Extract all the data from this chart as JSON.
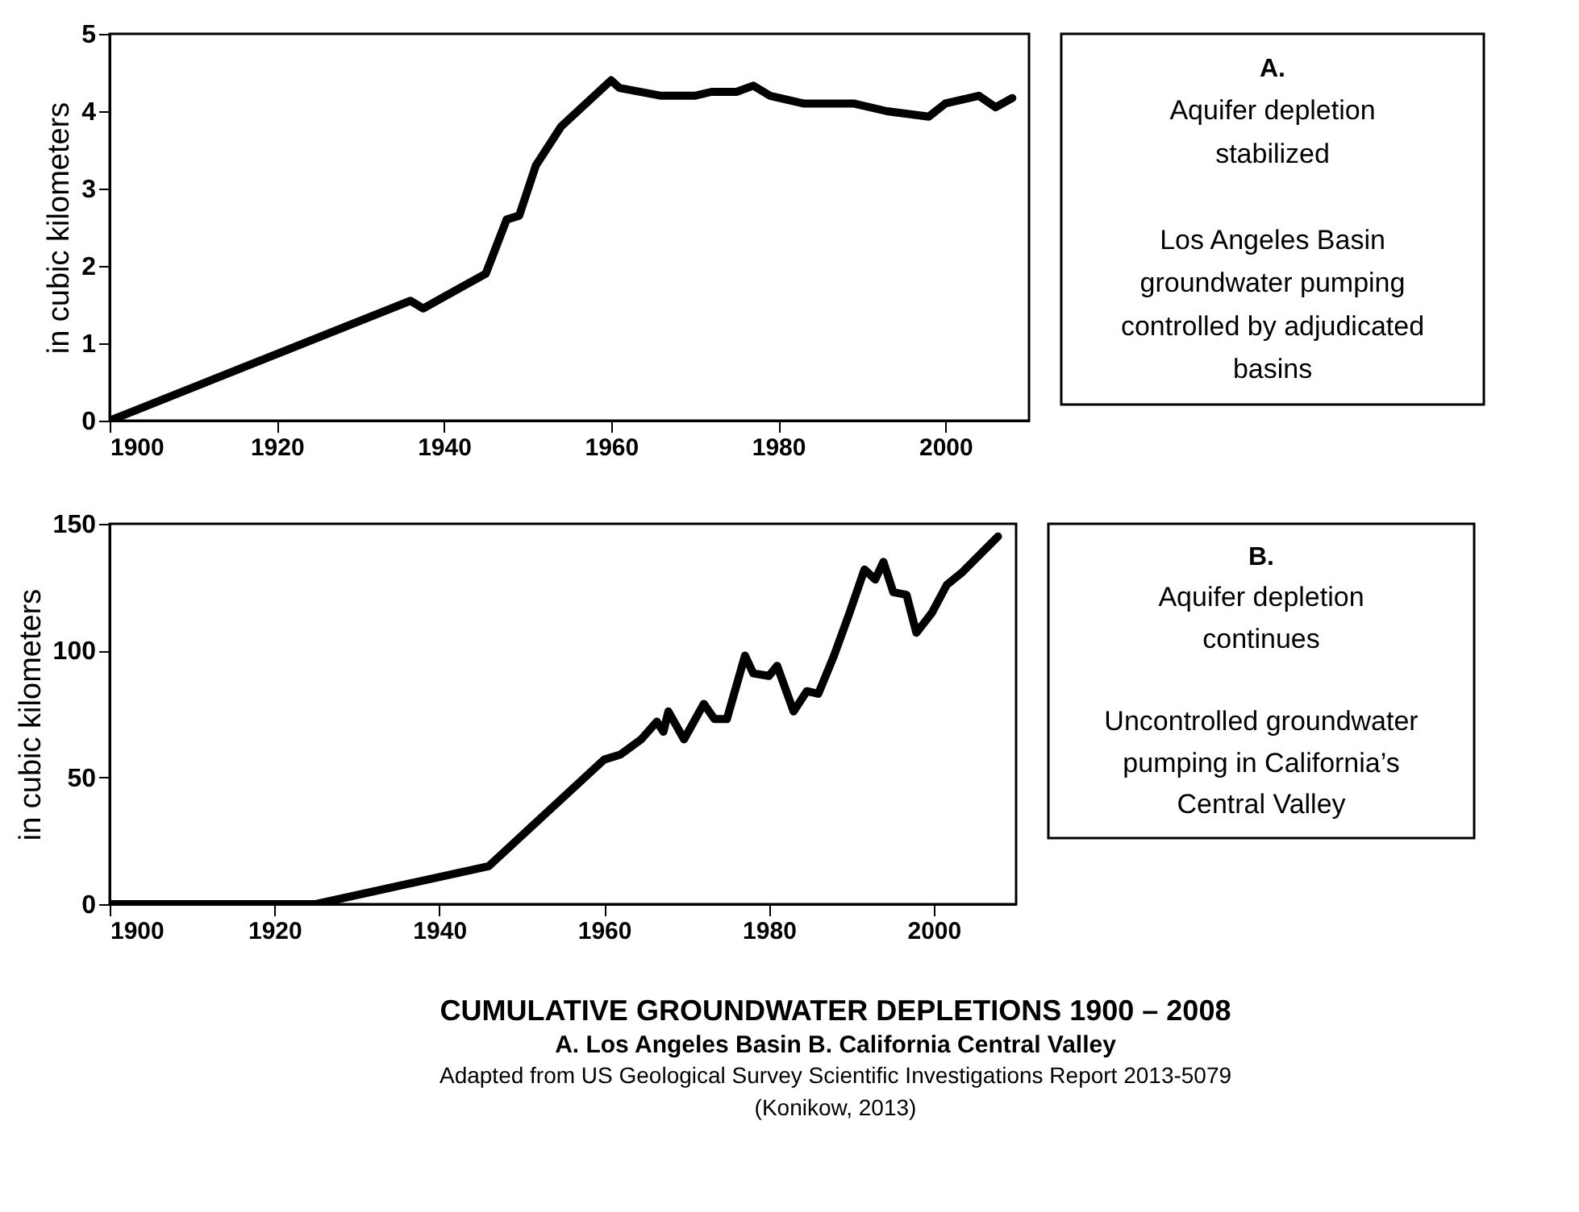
{
  "chart_data": [
    {
      "type": "line",
      "ylabel": "in cubic kilometers",
      "xlim": [
        1900,
        2010
      ],
      "xticks": [
        1900,
        1920,
        1940,
        1960,
        1980,
        2000
      ],
      "ylim": [
        0,
        5
      ],
      "yticks": [
        0,
        1,
        2,
        3,
        4,
        5
      ],
      "series": [
        {
          "color": "#000000",
          "x": [
            1900,
            1936,
            1937.5,
            1940,
            1945,
            1947.5,
            1949,
            1951,
            1954,
            1957,
            1960,
            1961,
            1966,
            1970,
            1972,
            1975,
            1977,
            1979,
            1983,
            1989,
            1993,
            1998,
            2000,
            2004,
            2006,
            2008
          ],
          "values": [
            0,
            1.55,
            1.45,
            1.6,
            1.9,
            2.6,
            2.65,
            3.3,
            3.8,
            4.1,
            4.4,
            4.3,
            4.2,
            4.2,
            4.25,
            4.25,
            4.33,
            4.2,
            4.1,
            4.1,
            4.0,
            3.93,
            4.1,
            4.2,
            4.05,
            4.17
          ]
        }
      ]
    },
    {
      "type": "other",
      "title": "A.",
      "annotations": [
        "Aquifer depletion stabilized",
        "Los Angeles Basin groundwater pumping controlled by adjudicated basins"
      ]
    },
    {
      "type": "line",
      "ylabel": "in cubic kilometers",
      "xlim": [
        1900,
        2010
      ],
      "xticks": [
        1900,
        1920,
        1940,
        1960,
        1980,
        2000
      ],
      "ylim": [
        0,
        150
      ],
      "yticks": [
        0,
        50,
        100,
        150
      ],
      "series": [
        {
          "color": "#000000",
          "x": [
            1900,
            1925,
            1946,
            1960,
            1962,
            1964.5,
            1966.4,
            1967.2,
            1967.8,
            1969.7,
            1972.1,
            1973.4,
            1974.9,
            1977.1,
            1978.1,
            1980,
            1981,
            1983,
            1984.6,
            1986,
            1987.9,
            1989.8,
            1991.6,
            1992.9,
            1993.9,
            1995.1,
            1996.7,
            1997.9,
            1999.8,
            2001.6,
            2003.5,
            2007.8
          ],
          "values": [
            0,
            0,
            15,
            57,
            59,
            65,
            72,
            68,
            76,
            65,
            79,
            73,
            73,
            98,
            91,
            90,
            94,
            76,
            84,
            83,
            98,
            115,
            132,
            128,
            135,
            123,
            122,
            107,
            115,
            126,
            131,
            145
          ]
        }
      ]
    },
    {
      "type": "other",
      "title": "B.",
      "annotations": [
        "Aquifer depletion continues",
        "Uncontrolled groundwater pumping in California’s Central Valley"
      ]
    },
    {
      "type": "other",
      "title": "CUMULATIVE GROUNDWATER DEPLETIONS 1900 – 2008",
      "subtitle": "A. Los Angeles Basin     B. California Central Valley",
      "annotations": [
        "Adapted from US Geological Survey Scientific Investigations Report 2013-5079",
        "(Konikow, 2013)"
      ]
    }
  ]
}
